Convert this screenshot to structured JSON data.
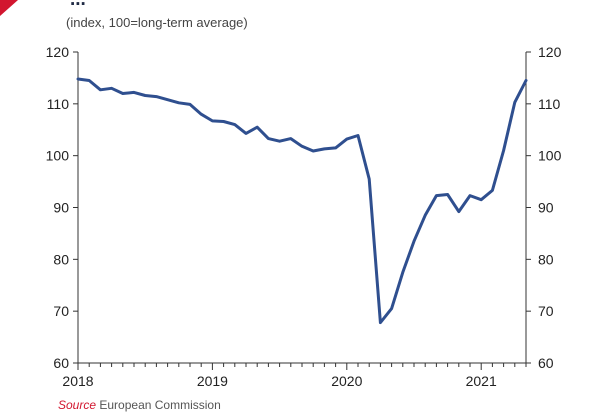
{
  "header": {
    "title_fragment": "...",
    "subtitle": "(index, 100=long-term average)"
  },
  "footer": {
    "source_label": "Source",
    "source_text": "European Commission"
  },
  "colors": {
    "line": "#2f4f8f",
    "accent": "#d2162f",
    "axis": "#333333",
    "text": "#222222"
  },
  "chart_data": {
    "type": "line",
    "title": "",
    "subtitle": "(index, 100=long-term average)",
    "xlabel": "",
    "ylabel": "",
    "ylim": [
      60,
      120
    ],
    "y_ticks": [
      60,
      70,
      80,
      90,
      100,
      110,
      120
    ],
    "y_tick_labels": [
      "60",
      "70",
      "80",
      "90",
      "100",
      "110",
      "120"
    ],
    "x_tick_labels": [
      "2018",
      "2019",
      "2020",
      "2021"
    ],
    "xlim": [
      "2018-01",
      "2021-05"
    ],
    "grid": false,
    "dual_axis_labels": true,
    "series": [
      {
        "x": [
          "2018-01",
          "2018-02",
          "2018-03",
          "2018-04",
          "2018-05",
          "2018-06",
          "2018-07",
          "2018-08",
          "2018-09",
          "2018-10",
          "2018-11",
          "2018-12",
          "2019-01",
          "2019-02",
          "2019-03",
          "2019-04",
          "2019-05",
          "2019-06",
          "2019-07",
          "2019-08",
          "2019-09",
          "2019-10",
          "2019-11",
          "2019-12",
          "2020-01",
          "2020-02",
          "2020-03",
          "2020-04",
          "2020-05",
          "2020-06",
          "2020-07",
          "2020-08",
          "2020-09",
          "2020-10",
          "2020-11",
          "2020-12",
          "2021-01",
          "2021-02",
          "2021-03",
          "2021-04",
          "2021-05"
        ],
        "values": [
          114.8,
          114.5,
          112.7,
          113.0,
          112.0,
          112.2,
          111.6,
          111.4,
          110.8,
          110.2,
          109.9,
          108.0,
          106.7,
          106.6,
          106.0,
          104.3,
          105.5,
          103.3,
          102.8,
          103.3,
          101.8,
          100.9,
          101.3,
          101.5,
          103.2,
          103.9,
          95.5,
          67.8,
          70.5,
          77.5,
          83.5,
          88.5,
          92.3,
          92.5,
          89.2,
          92.3,
          91.5,
          93.3,
          101.0,
          110.3,
          114.5
        ]
      }
    ]
  }
}
